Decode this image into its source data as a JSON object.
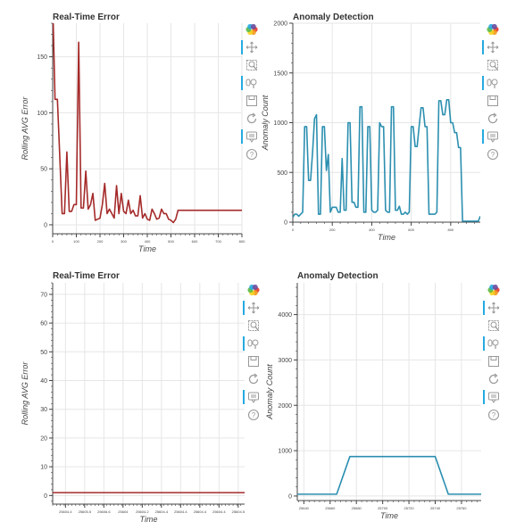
{
  "charts": [
    {
      "type": "line",
      "title": "Real-Time Error",
      "xlabel": "Time",
      "ylabel": "Rolling AVG Error",
      "color": "#a52a2a",
      "xlim": [
        0,
        800
      ],
      "ylim": [
        -8,
        180
      ],
      "yticks": [
        0,
        50,
        100,
        150
      ],
      "xticks": [
        0,
        100,
        200,
        300,
        400,
        500,
        600,
        700,
        800
      ],
      "x": [
        0,
        10,
        20,
        40,
        50,
        60,
        70,
        80,
        90,
        100,
        110,
        120,
        130,
        140,
        150,
        160,
        170,
        180,
        190,
        200,
        210,
        220,
        230,
        240,
        250,
        260,
        270,
        280,
        290,
        300,
        310,
        320,
        330,
        340,
        350,
        360,
        370,
        380,
        390,
        400,
        410,
        420,
        430,
        440,
        450,
        460,
        470,
        480,
        490,
        500,
        510,
        520,
        530,
        540,
        550,
        560,
        570,
        580,
        590,
        600,
        610,
        620,
        630,
        640,
        650,
        660,
        670,
        680,
        690,
        700,
        710,
        720,
        730,
        740,
        750,
        760,
        770,
        780,
        790,
        800
      ],
      "y": [
        200,
        112,
        112,
        10,
        10,
        65,
        12,
        12,
        18,
        18,
        163,
        15,
        15,
        48,
        14,
        18,
        28,
        4,
        5,
        6,
        18,
        37,
        10,
        14,
        10,
        6,
        35,
        10,
        28,
        12,
        10,
        22,
        10,
        13,
        8,
        8,
        26,
        6,
        10,
        5,
        4,
        14,
        10,
        5,
        6,
        14,
        10,
        10,
        5,
        4,
        2,
        5,
        13,
        13,
        13,
        13,
        13,
        13,
        13,
        13,
        13,
        13,
        13,
        13,
        13,
        13,
        13,
        13,
        13,
        13,
        13,
        13,
        13,
        13,
        13,
        13,
        13,
        13,
        13,
        13
      ]
    },
    {
      "type": "line",
      "title": "Anomaly Detection",
      "xlabel": "Time",
      "ylabel": "Anomaly Count",
      "color": "#2b8fb0",
      "xlim": [
        0,
        950
      ],
      "ylim": [
        0,
        2000
      ],
      "yticks": [
        0,
        500,
        1000,
        1500,
        2000
      ],
      "xticks": [
        0,
        200,
        400,
        600,
        800
      ],
      "x": [
        0,
        10,
        20,
        30,
        40,
        50,
        60,
        70,
        80,
        90,
        100,
        110,
        120,
        130,
        140,
        150,
        160,
        170,
        180,
        190,
        200,
        210,
        220,
        230,
        240,
        250,
        260,
        270,
        280,
        290,
        300,
        310,
        320,
        330,
        340,
        350,
        360,
        370,
        380,
        390,
        400,
        410,
        420,
        430,
        440,
        450,
        460,
        470,
        480,
        490,
        500,
        510,
        520,
        530,
        540,
        550,
        560,
        570,
        580,
        590,
        600,
        610,
        620,
        630,
        640,
        650,
        660,
        670,
        680,
        690,
        700,
        710,
        720,
        730,
        740,
        750,
        760,
        770,
        780,
        790,
        800,
        810,
        820,
        830,
        840,
        850,
        860,
        870,
        880,
        890,
        900,
        910,
        920,
        930,
        940,
        950
      ],
      "y": [
        50,
        80,
        80,
        60,
        80,
        100,
        960,
        960,
        420,
        420,
        700,
        1040,
        1080,
        80,
        80,
        960,
        960,
        520,
        680,
        100,
        150,
        150,
        150,
        100,
        100,
        640,
        120,
        120,
        1000,
        1000,
        200,
        200,
        150,
        150,
        1160,
        1160,
        100,
        100,
        960,
        960,
        120,
        100,
        100,
        120,
        1000,
        960,
        960,
        120,
        100,
        100,
        1160,
        1160,
        120,
        120,
        160,
        80,
        80,
        100,
        80,
        100,
        960,
        960,
        760,
        760,
        960,
        1150,
        1150,
        960,
        960,
        80,
        80,
        80,
        80,
        100,
        1220,
        1220,
        1080,
        1080,
        1230,
        1230,
        1000,
        1000,
        900,
        900,
        750,
        750,
        10,
        10,
        10,
        10,
        10,
        10,
        10,
        10,
        10,
        60
      ]
    },
    {
      "type": "line",
      "title": "Real-Time Error",
      "xlabel": "Time",
      "ylabel": "Rolling AVG Error",
      "color": "#a52a2a",
      "xlim": [
        0,
        6
      ],
      "ylim": [
        -3,
        74
      ],
      "yticks": [
        0,
        10,
        20,
        30,
        40,
        50,
        60,
        70
      ],
      "xticks": [
        0.4,
        1,
        1.6,
        2.2,
        2.8,
        3.4,
        4,
        4.6,
        5.2,
        5.8
      ],
      "xticklabels": [
        "25604.4",
        "25605.5",
        "25606.6",
        "25604",
        "25604.2",
        "25604.4",
        "25604.4",
        "25604.4",
        "25604.4",
        "25604.5"
      ],
      "x": [
        0,
        6
      ],
      "y": [
        1,
        1
      ]
    },
    {
      "type": "line",
      "title": "Anomaly Detection",
      "xlabel": "Time",
      "ylabel": "Anomaly Count",
      "color": "#2b8fb0",
      "xlim": [
        25635,
        25775
      ],
      "ylim": [
        -100,
        4700
      ],
      "yticks": [
        0,
        1000,
        2000,
        3000,
        4000
      ],
      "xticks": [
        25640,
        25660,
        25680,
        25700,
        25720,
        25740,
        25760
      ],
      "xticklabels": [
        "25640",
        "25660",
        "25680",
        "25700",
        "25720",
        "25740",
        "25760"
      ],
      "x": [
        25635,
        25665,
        25675,
        25740,
        25750,
        25775
      ],
      "y": [
        40,
        40,
        870,
        870,
        40,
        40
      ]
    }
  ],
  "toolbar_tools": [
    {
      "name": "bokeh-logo-icon",
      "glyph": "",
      "active": false
    },
    {
      "name": "pan-tool-icon",
      "glyph": "✥",
      "active": true
    },
    {
      "name": "box-zoom-tool-icon",
      "glyph": "",
      "active": false
    },
    {
      "name": "wheel-zoom-tool-icon",
      "glyph": "",
      "active": true
    },
    {
      "name": "save-tool-icon",
      "glyph": "",
      "active": false
    },
    {
      "name": "reset-tool-icon",
      "glyph": "⟲",
      "active": false
    },
    {
      "name": "hover-tool-icon",
      "glyph": "",
      "active": true
    },
    {
      "name": "help-tool-icon",
      "glyph": "?",
      "active": false
    }
  ],
  "colors": {
    "grid": "#e6e6e6",
    "axis": "#444444",
    "active_tool": "#26aae1"
  }
}
